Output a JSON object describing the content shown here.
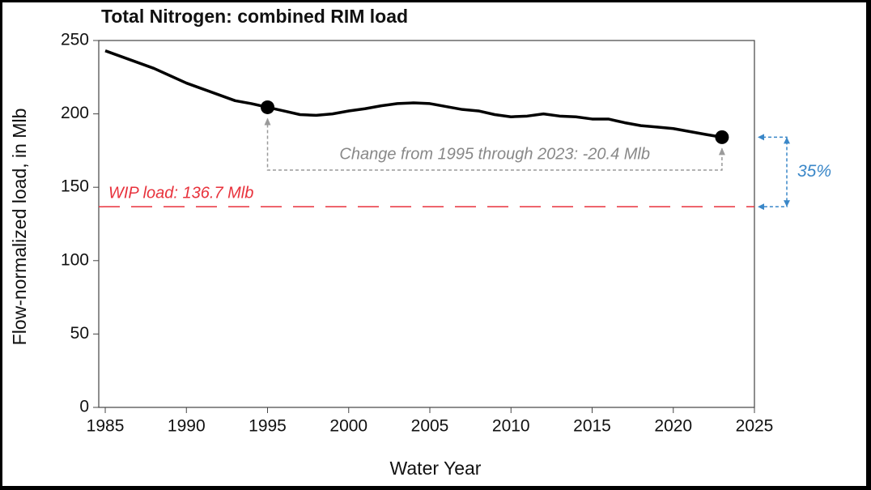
{
  "chart_data": {
    "type": "line",
    "title": "Total Nitrogen: combined RIM load",
    "x_label": "Water Year",
    "y_label": "Flow-normalized load, in Mlb",
    "x": [
      1985,
      1986,
      1987,
      1988,
      1989,
      1990,
      1991,
      1992,
      1993,
      1994,
      1995,
      1996,
      1997,
      1998,
      1999,
      2000,
      2001,
      2002,
      2003,
      2004,
      2005,
      2006,
      2007,
      2008,
      2009,
      2010,
      2011,
      2012,
      2013,
      2014,
      2015,
      2016,
      2017,
      2018,
      2019,
      2020,
      2021,
      2022,
      2023
    ],
    "series": [
      {
        "name": "Flow-normalized load",
        "color": "#000000",
        "values": [
          243,
          239,
          235,
          231,
          226,
          221,
          217,
          213,
          209,
          207,
          204.5,
          202,
          199.5,
          199,
          200,
          202,
          203.5,
          205.5,
          207,
          207.5,
          207,
          205,
          203,
          202,
          199.5,
          198,
          198.5,
          200,
          198.5,
          198,
          196.5,
          196.5,
          194,
          192,
          191,
          190,
          188,
          186,
          184.1
        ]
      }
    ],
    "xlim": [
      1984.6,
      2025
    ],
    "xticks": [
      1985,
      1990,
      1995,
      2000,
      2005,
      2010,
      2015,
      2020,
      2025
    ],
    "ylim": [
      0,
      250
    ],
    "yticks": [
      0,
      50,
      100,
      150,
      200,
      250
    ],
    "reference_line": {
      "value": 136.7,
      "label": "WIP load: 136.7 Mlb",
      "color": "#e8323c"
    },
    "annotations": {
      "change": "Change from 1995 through 2023: -20.4 Mlb",
      "percent": "35%"
    },
    "grid": false
  }
}
